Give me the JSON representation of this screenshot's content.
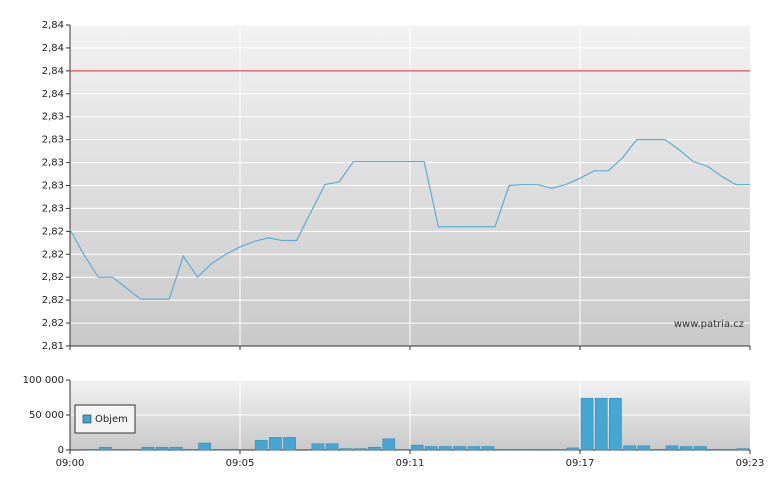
{
  "chart_data": [
    {
      "type": "line",
      "series": [
        {
          "color": "#5aaed6",
          "values": [
            2.8227,
            2.8199,
            2.8175,
            2.8175,
            2.8163,
            2.8151,
            2.8151,
            2.8151,
            2.8198,
            2.8175,
            2.819,
            2.82,
            2.8208,
            2.8214,
            2.8218,
            2.8215,
            2.8215,
            2.8246,
            2.8276,
            2.8279,
            2.8301,
            2.8301,
            2.8301,
            2.8301,
            2.8301,
            2.8301,
            2.823,
            2.823,
            2.823,
            2.823,
            2.823,
            2.8275,
            2.8276,
            2.8276,
            2.8272,
            2.8276,
            2.8283,
            2.8291,
            2.8291,
            2.8305,
            2.8325,
            2.8325,
            2.8325,
            2.8314,
            2.8301,
            2.8296,
            2.8285,
            2.8276,
            2.8276
          ]
        }
      ],
      "reference_line": {
        "value": 2.84,
        "color": "#e05050"
      },
      "watermark": "www.patria.cz",
      "ylim": [
        2.81,
        2.845
      ],
      "yticks": [
        {
          "value": 2.81,
          "label": "2,81"
        },
        {
          "value": 2.8125,
          "label": "2,82"
        },
        {
          "value": 2.815,
          "label": "2,82"
        },
        {
          "value": 2.8175,
          "label": "2,82"
        },
        {
          "value": 2.82,
          "label": "2,82"
        },
        {
          "value": 2.8225,
          "label": "2,82"
        },
        {
          "value": 2.825,
          "label": "2,83"
        },
        {
          "value": 2.8275,
          "label": "2,83"
        },
        {
          "value": 2.83,
          "label": "2,83"
        },
        {
          "value": 2.8325,
          "label": "2,83"
        },
        {
          "value": 2.835,
          "label": "2,83"
        },
        {
          "value": 2.8375,
          "label": "2,84"
        },
        {
          "value": 2.84,
          "label": "2,84"
        },
        {
          "value": 2.8425,
          "label": "2,84"
        },
        {
          "value": 2.845,
          "label": "2,84"
        }
      ],
      "grid": true
    },
    {
      "type": "bar",
      "categories": [
        "09:00",
        null,
        null,
        null,
        null,
        null,
        null,
        null,
        null,
        null,
        null,
        null,
        "09:05",
        null,
        null,
        null,
        null,
        null,
        null,
        null,
        null,
        null,
        null,
        null,
        "09:11",
        null,
        null,
        null,
        null,
        null,
        null,
        null,
        null,
        null,
        null,
        null,
        "09:17",
        null,
        null,
        null,
        null,
        null,
        null,
        null,
        null,
        null,
        null,
        null,
        "09:23"
      ],
      "series": [
        {
          "name": "Objem",
          "color": "#45a5d3",
          "values": [
            null,
            1000,
            4000,
            1000,
            1000,
            4000,
            4000,
            4000,
            1000,
            10000,
            1000,
            1000,
            null,
            14000,
            18000,
            18000,
            null,
            9000,
            9000,
            2000,
            2000,
            4000,
            16000,
            1000,
            7000,
            5000,
            5000,
            5000,
            5000,
            5000,
            1000,
            1000,
            1000,
            1000,
            1000,
            3000,
            74000,
            74000,
            74000,
            6000,
            6000,
            1000,
            6000,
            5000,
            5000,
            1000,
            1000,
            2000,
            null
          ]
        }
      ],
      "ylim": [
        0,
        100000
      ],
      "yticks": [
        0,
        {
          "value": 50000,
          "label": "50 000"
        },
        {
          "value": 100000,
          "label": "100 000"
        }
      ],
      "legend": "left",
      "grid": true
    }
  ]
}
